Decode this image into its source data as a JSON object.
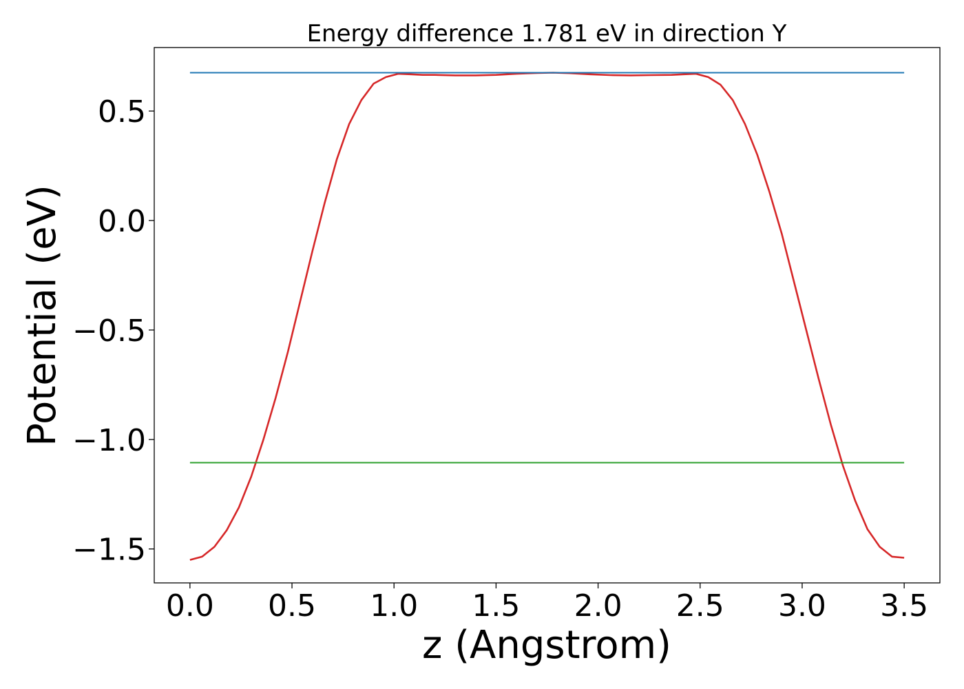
{
  "chart_data": {
    "type": "line",
    "title": "Energy difference 1.781 eV in direction Y",
    "xlabel": "z (Angstrom)",
    "ylabel": "Potential (eV)",
    "xlim": [
      -0.175,
      3.675
    ],
    "ylim": [
      -1.655,
      0.79
    ],
    "xticks": [
      0.0,
      0.5,
      1.0,
      1.5,
      2.0,
      2.5,
      3.0,
      3.5
    ],
    "xtick_labels": [
      "0.0",
      "0.5",
      "1.0",
      "1.5",
      "2.0",
      "2.5",
      "3.0",
      "3.5"
    ],
    "yticks": [
      0.5,
      0.0,
      -0.5,
      -1.0,
      -1.5
    ],
    "ytick_labels": [
      "0.5",
      "0.0",
      "−0.5",
      "−1.0",
      "−1.5"
    ],
    "grid": false,
    "legend": "none",
    "series": [
      {
        "color": "#d62728",
        "x": [
          0.0,
          0.06,
          0.12,
          0.18,
          0.24,
          0.3,
          0.36,
          0.42,
          0.48,
          0.54,
          0.6,
          0.66,
          0.72,
          0.78,
          0.84,
          0.9,
          0.96,
          1.02,
          1.08,
          1.14,
          1.2,
          1.3,
          1.4,
          1.5,
          1.6,
          1.7,
          1.78,
          1.86,
          1.96,
          2.06,
          2.16,
          2.26,
          2.36,
          2.42,
          2.48,
          2.54,
          2.6,
          2.66,
          2.72,
          2.78,
          2.84,
          2.9,
          2.96,
          3.02,
          3.08,
          3.14,
          3.2,
          3.26,
          3.32,
          3.38,
          3.44,
          3.5
        ],
        "y": [
          -1.55,
          -1.535,
          -1.49,
          -1.415,
          -1.31,
          -1.17,
          -1.0,
          -0.81,
          -0.6,
          -0.37,
          -0.14,
          0.08,
          0.28,
          0.44,
          0.55,
          0.625,
          0.655,
          0.67,
          0.668,
          0.665,
          0.665,
          0.663,
          0.663,
          0.665,
          0.67,
          0.674,
          0.675,
          0.673,
          0.668,
          0.664,
          0.663,
          0.664,
          0.665,
          0.668,
          0.67,
          0.655,
          0.62,
          0.55,
          0.44,
          0.3,
          0.13,
          -0.06,
          -0.28,
          -0.5,
          -0.72,
          -0.93,
          -1.12,
          -1.28,
          -1.41,
          -1.49,
          -1.535,
          -1.54
        ]
      },
      {
        "color": "#1f77b4",
        "x": [
          0.0,
          3.5
        ],
        "y": [
          0.675,
          0.675
        ]
      },
      {
        "color": "#2ca02c",
        "x": [
          0.0,
          3.5
        ],
        "y": [
          -1.106,
          -1.106
        ]
      }
    ]
  }
}
